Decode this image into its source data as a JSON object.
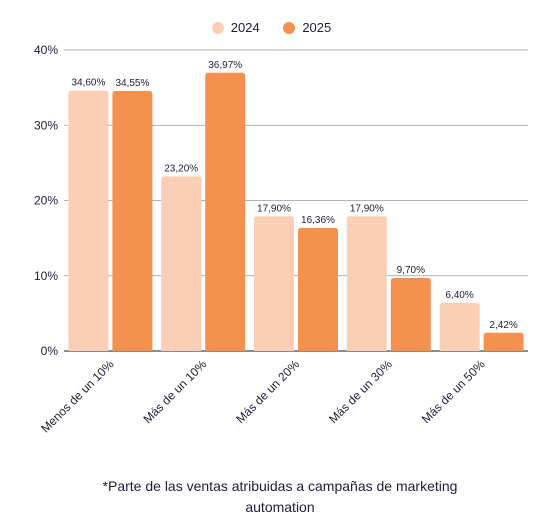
{
  "chart_data": {
    "type": "bar",
    "categories": [
      "Menos de un 10%",
      "Más de un 10%",
      "Más de un 20%",
      "Más de un 30%",
      "Más de un 50%"
    ],
    "series": [
      {
        "name": "2024",
        "color": "#fbcfb5",
        "values": [
          34.6,
          23.2,
          17.9,
          17.9,
          6.4
        ],
        "labels": [
          "34,60%",
          "23,20%",
          "17,90%",
          "17,90%",
          "6,40%"
        ]
      },
      {
        "name": "2025",
        "color": "#f5914f",
        "values": [
          34.55,
          36.97,
          16.36,
          9.7,
          2.42
        ],
        "labels": [
          "34,55%",
          "36,97%",
          "16,36%",
          "9,70%",
          "2,42%"
        ]
      }
    ],
    "ylim": [
      0,
      40
    ],
    "yticks": [
      0,
      10,
      20,
      30,
      40
    ],
    "ytick_labels": [
      "0%",
      "10%",
      "20%",
      "30%",
      "40%"
    ],
    "grid": true,
    "legend_position": "top-center"
  },
  "footnote": {
    "line1": "*Parte de las ventas atribuidas a campañas de marketing",
    "line2": "automation"
  }
}
